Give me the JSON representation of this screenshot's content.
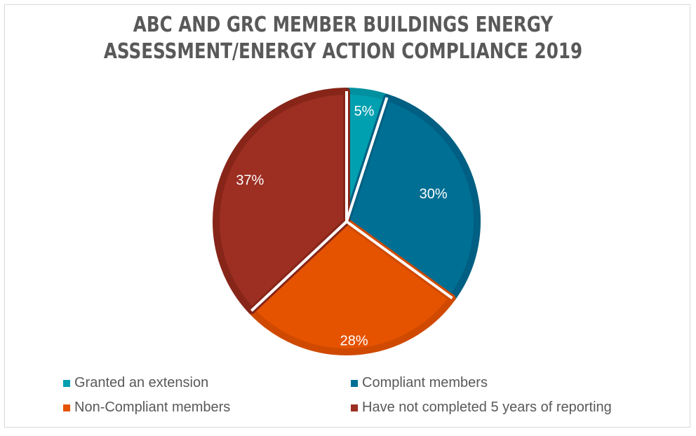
{
  "chart_data": {
    "type": "pie",
    "title": "ABC AND GRC MEMBER BUILDINGS ENERGY ASSESSMENT/ENERGY ACTION COMPLIANCE 2019",
    "title_lines": [
      "ABC AND GRC MEMBER BUILDINGS ENERGY",
      "ASSESSMENT/ENERGY ACTION COMPLIANCE 2019"
    ],
    "categories": [
      "Granted an extension",
      "Compliant members",
      "Non-Compliant members",
      "Have not completed 5 years of reporting"
    ],
    "values": [
      5,
      30,
      28,
      37
    ],
    "data_labels": [
      "5%",
      "30%",
      "28%",
      "37%"
    ],
    "colors": [
      "#00a0b0",
      "#006f94",
      "#e55300",
      "#9c2e22"
    ],
    "edge_colors": [
      "#0090a0",
      "#005f82",
      "#cf4a00",
      "#872519"
    ],
    "legend_placement": "bottom"
  }
}
